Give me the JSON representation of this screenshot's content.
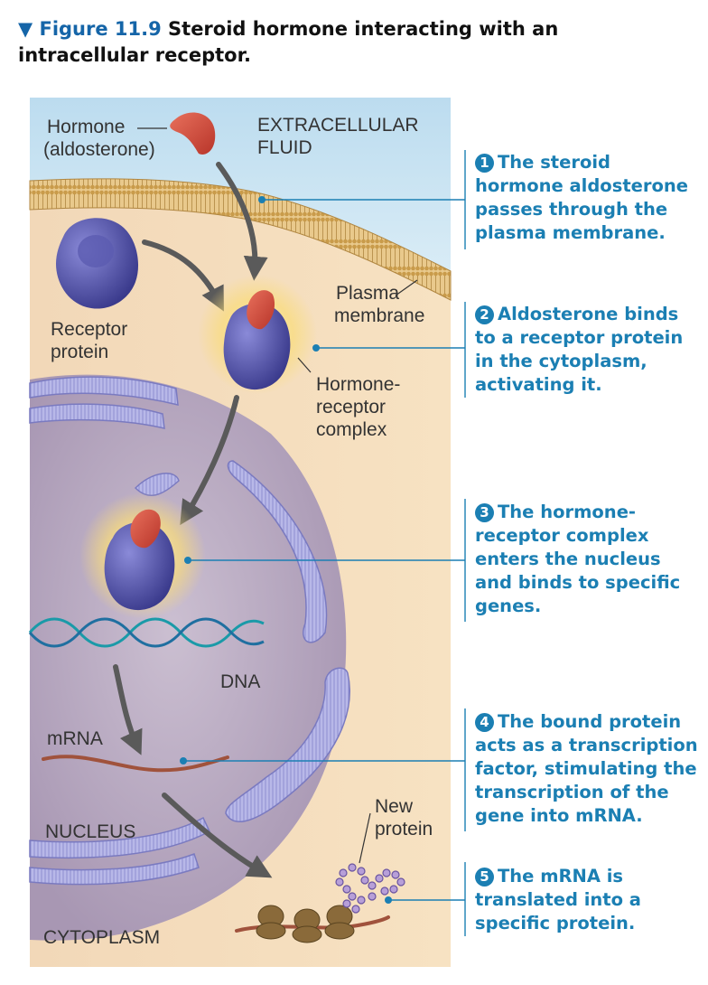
{
  "figure": {
    "marker": "▼",
    "number": "Figure 11.9",
    "title": "Steroid hormone interacting with an intracellular receptor."
  },
  "labels": {
    "hormone": "Hormone",
    "aldosterone": "(aldosterone)",
    "extracellular1": "EXTRACELLULAR",
    "extracellular2": "FLUID",
    "plasma1": "Plasma",
    "plasma2": "membrane",
    "receptor1": "Receptor",
    "receptor2": "protein",
    "complex1": "Hormone-",
    "complex2": "receptor",
    "complex3": "complex",
    "dna": "DNA",
    "mrna": "mRNA",
    "new1": "New",
    "new2": "protein",
    "nucleus": "NUCLEUS",
    "cytoplasm": "CYTOPLASM"
  },
  "steps": [
    {
      "num": "1",
      "text": "The steroid hormone aldosterone passes through the plasma membrane."
    },
    {
      "num": "2",
      "text": "Aldosterone binds to a receptor protein in the cytoplasm, activating it."
    },
    {
      "num": "3",
      "text": "The hormone-receptor complex enters the nucleus and binds to specific genes."
    },
    {
      "num": "4",
      "text": "The bound protein acts as a transcription factor, stimulating the transcription of the gene into mRNA."
    },
    {
      "num": "5",
      "text": "The mRNA is translated into a specific protein."
    }
  ],
  "colors": {
    "title_accent": "#1565a8",
    "step_text": "#1b7fb3",
    "extracellular": "#c9e3f2",
    "cytoplasm": "#f4d9b4",
    "nucleus": "#bfb0c8",
    "receptor": "#4a4aa0",
    "hormone": "#d24b3c"
  }
}
